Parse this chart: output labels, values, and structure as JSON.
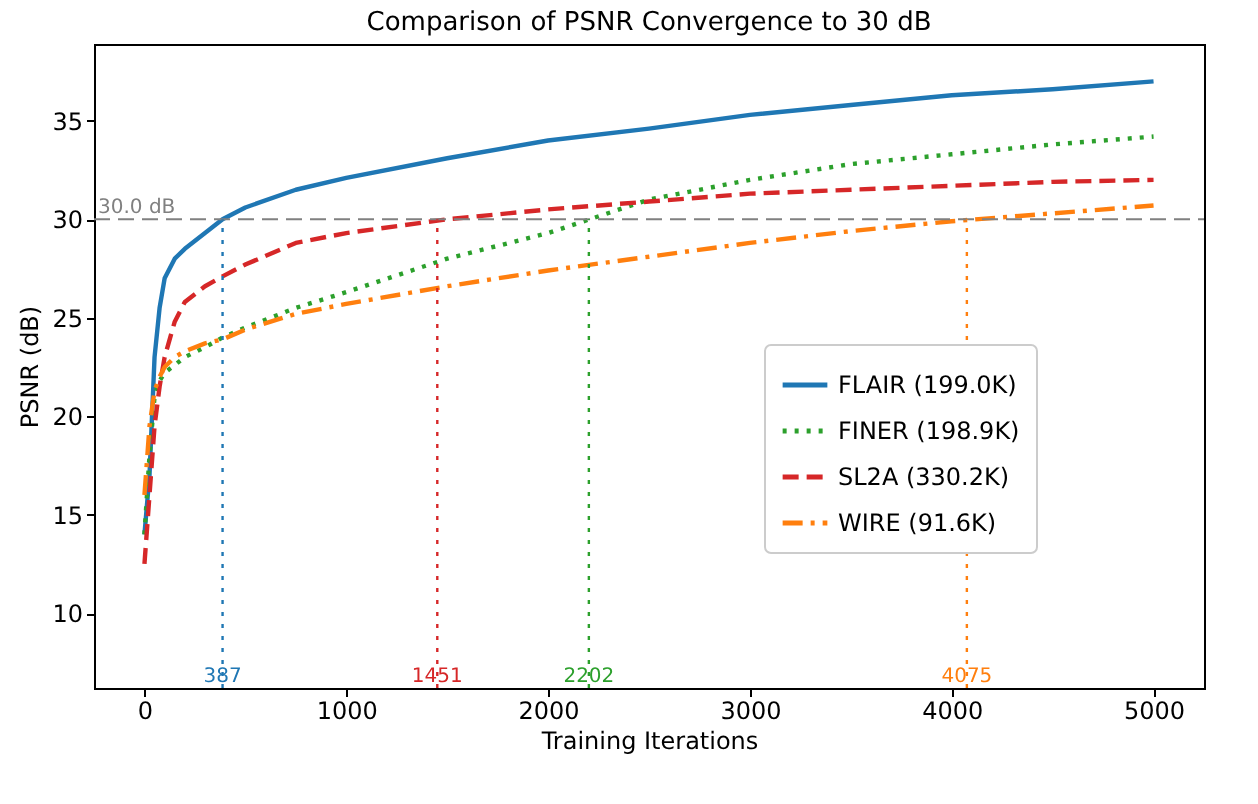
{
  "chart_data": {
    "type": "line",
    "title": "Comparison of PSNR Convergence to 30 dB",
    "xlabel": "Training Iterations",
    "ylabel": "PSNR (dB)",
    "x": [
      0,
      25,
      50,
      75,
      100,
      150,
      200,
      300,
      387,
      500,
      750,
      1000,
      1500,
      2000,
      2500,
      3000,
      3500,
      4000,
      4500,
      5000
    ],
    "series": [
      {
        "name": "FLAIR (199.0K)",
        "color": "#1f77b4",
        "line_style": "solid",
        "values": [
          14,
          17,
          23,
          25.5,
          27,
          28,
          28.5,
          29.3,
          30,
          30.6,
          31.5,
          32.1,
          33.1,
          34.0,
          34.6,
          35.3,
          35.8,
          36.3,
          36.6,
          37.0
        ]
      },
      {
        "name": "FINER (198.9K)",
        "color": "#2ca02c",
        "line_style": "dotted",
        "values": [
          14,
          18,
          21,
          21.8,
          22.2,
          22.6,
          23,
          23.5,
          24,
          24.5,
          25.5,
          26.3,
          28,
          29.3,
          31,
          32,
          32.8,
          33.3,
          33.8,
          34.2
        ]
      },
      {
        "name": "SL2A (330.2K)",
        "color": "#d62728",
        "line_style": "dashed",
        "values": [
          12.5,
          16,
          19.5,
          21.5,
          23,
          24.8,
          25.8,
          26.6,
          27.1,
          27.7,
          28.8,
          29.3,
          30.0,
          30.5,
          30.9,
          31.3,
          31.5,
          31.7,
          31.9,
          32.0
        ]
      },
      {
        "name": "WIRE (91.6K)",
        "color": "#ff7f0e",
        "line_style": "dashdot",
        "values": [
          16,
          19.5,
          21.3,
          22,
          22.5,
          23,
          23.3,
          23.7,
          23.9,
          24.4,
          25.2,
          25.7,
          26.6,
          27.4,
          28.1,
          28.8,
          29.4,
          29.9,
          30.3,
          30.7
        ]
      }
    ],
    "xlim": [
      -250,
      5250
    ],
    "xticks": [
      0,
      1000,
      2000,
      3000,
      4000,
      5000
    ],
    "ylim": [
      6.2,
      38.9
    ],
    "yticks": [
      10,
      15,
      20,
      25,
      30,
      35
    ],
    "ref_lines": [
      {
        "axis": "y",
        "value": 30,
        "label": "30.0 dB",
        "color": "#808080",
        "line_style": "dashed"
      },
      {
        "axis": "x",
        "value": 387,
        "label": "387",
        "color": "#1f77b4",
        "line_style": "dotted"
      },
      {
        "axis": "x",
        "value": 1451,
        "label": "1451",
        "color": "#d62728",
        "line_style": "dotted"
      },
      {
        "axis": "x",
        "value": 2202,
        "label": "2202",
        "color": "#2ca02c",
        "line_style": "dotted"
      },
      {
        "axis": "x",
        "value": 4075,
        "label": "4075",
        "color": "#ff7f0e",
        "line_style": "dotted"
      }
    ],
    "grid": false,
    "legend": "right"
  }
}
